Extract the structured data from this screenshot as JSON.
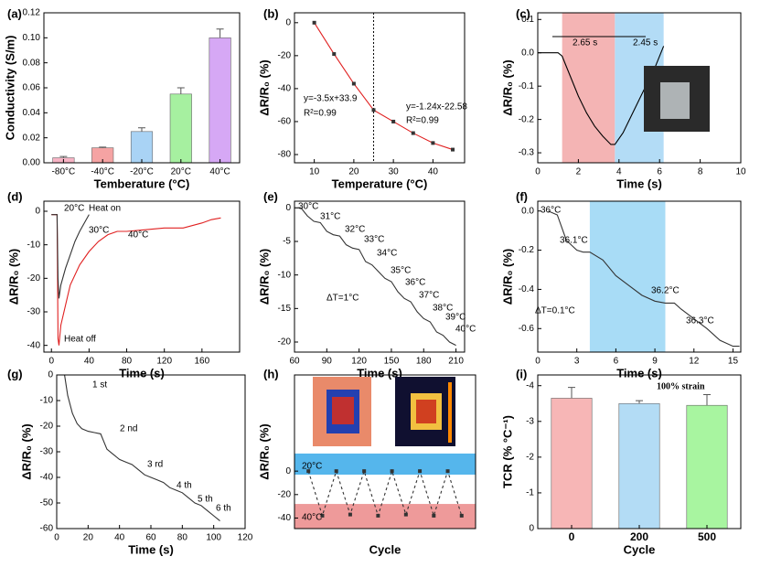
{
  "chart_data": [
    {
      "type": "bar",
      "panel_label": "(a)",
      "xlabel": "Temberature (°C)",
      "ylabel": "Conductivity (S/m)",
      "categories": [
        "-80°C",
        "-40°C",
        "-20°C",
        "20°C",
        "40°C"
      ],
      "values": [
        0.004,
        0.012,
        0.025,
        0.055,
        0.1
      ],
      "errors": [
        0.001,
        0.0005,
        0.003,
        0.005,
        0.007
      ],
      "colors": [
        "#f7b3c4",
        "#f5a3a3",
        "#a9d3f5",
        "#a6f0a0",
        "#d6a8f5"
      ],
      "ylim": [
        0,
        0.12
      ],
      "yticks": [
        {
          "value": 0,
          "label": "0.00"
        },
        {
          "value": 0.02,
          "label": "0.02"
        },
        {
          "value": 0.04,
          "label": "0.04"
        },
        {
          "value": 0.06,
          "label": "0.06"
        },
        {
          "value": 0.08,
          "label": "0.08"
        },
        {
          "value": 0.1,
          "label": "0.10"
        },
        {
          "value": 0.12,
          "label": "0.12"
        }
      ]
    },
    {
      "type": "scatter",
      "panel_label": "(b)",
      "xlabel": "Temperature (°C)",
      "ylabel": "ΔR/R₀ (%)",
      "x": [
        10,
        15,
        20,
        25,
        30,
        35,
        40,
        45
      ],
      "series": [
        {
          "color": "#e02020",
          "marker_color": "#333333",
          "marker": "square",
          "values": [
            0,
            -19,
            -37,
            -53,
            -60,
            -67,
            -73,
            -77
          ]
        }
      ],
      "vline": 25,
      "xlim": [
        5,
        48
      ],
      "xticks": [
        10,
        20,
        30,
        40
      ],
      "ylim": [
        -85,
        6
      ],
      "yticks": [
        0,
        -20,
        -40,
        -60,
        -80
      ],
      "annotations": [
        {
          "text": "y=-3.5x+33.9"
        },
        {
          "text": "R²=0.99"
        },
        {
          "text": "y=-1.24x-22.58"
        },
        {
          "text": "R²=0.99"
        }
      ]
    },
    {
      "type": "line",
      "panel_label": "(c)",
      "xlabel": "Time (s)",
      "ylabel": "ΔR/R₀ (%)",
      "x": [
        0,
        0.5,
        1.0,
        1.2,
        1.6,
        2.0,
        2.4,
        2.8,
        3.2,
        3.6,
        3.8,
        4.2,
        4.6,
        5.0,
        5.4,
        5.8,
        6.2
      ],
      "series": [
        {
          "color": "#000000",
          "values": [
            0,
            0,
            0,
            -0.01,
            -0.07,
            -0.13,
            -0.18,
            -0.22,
            -0.25,
            -0.275,
            -0.275,
            -0.24,
            -0.19,
            -0.14,
            -0.09,
            -0.04,
            0.02
          ]
        }
      ],
      "spans": [
        {
          "axis": "x",
          "from": 1.2,
          "to": 3.8,
          "color": "#f4b4b4"
        },
        {
          "axis": "x",
          "from": 3.8,
          "to": 6.2,
          "color": "#b3dcf6"
        }
      ],
      "xlim": [
        0,
        10
      ],
      "xticks": [
        0,
        2,
        4,
        6,
        8,
        10
      ],
      "ylim": [
        -0.33,
        0.12
      ],
      "yticks": [
        -0.3,
        -0.2,
        -0.1,
        {
          "value": 0,
          "label": "0.0"
        },
        0.1
      ],
      "annotations": [
        {
          "text": "2.65 s"
        },
        {
          "text": "2.45 s"
        }
      ]
    },
    {
      "type": "line",
      "panel_label": "(d)",
      "xlabel": "Time (s)",
      "ylabel": "ΔR/R₀ (%)",
      "series": [
        {
          "name": "40°C",
          "color": "#e02020",
          "x": [
            0,
            4,
            6,
            7,
            8,
            10,
            15,
            20,
            30,
            40,
            50,
            60,
            70,
            80,
            100,
            120,
            140,
            160,
            170,
            180
          ],
          "values": [
            -1,
            -1,
            -1,
            -38,
            -40,
            -34,
            -28,
            -22,
            -16,
            -12,
            -9,
            -7,
            -6,
            -6,
            -5.5,
            -5,
            -5,
            -3.5,
            -2.5,
            -2
          ]
        },
        {
          "name": "30°C",
          "color": "#333333",
          "x": [
            0,
            4,
            6,
            7,
            8,
            10,
            15,
            20,
            25,
            30,
            40
          ],
          "values": [
            -1,
            -1,
            -1,
            -20,
            -26,
            -22,
            -17,
            -13,
            -9,
            -6,
            -1
          ]
        }
      ],
      "xlim": [
        -8,
        200
      ],
      "xticks": [
        0,
        40,
        80,
        120,
        160
      ],
      "ylim": [
        -42,
        3
      ],
      "yticks": [
        0,
        -10,
        -20,
        -30,
        -40
      ],
      "annotations": [
        {
          "text": "20°C",
          "color": "#1a3fcf"
        },
        {
          "text": "Heat on",
          "color": "#1a3fcf"
        },
        {
          "text": "Heat off",
          "color": "#e02020"
        }
      ]
    },
    {
      "type": "line",
      "panel_label": "(e)",
      "xlabel": "Time (s)",
      "ylabel": "ΔR/R₀ (%)",
      "x": [
        60,
        66,
        72,
        78,
        84,
        90,
        96,
        102,
        108,
        114,
        120,
        126,
        132,
        138,
        144,
        150,
        156,
        162,
        168,
        174,
        180,
        186,
        192,
        198,
        204,
        210
      ],
      "series": [
        {
          "color": "#333333",
          "values": [
            0,
            0,
            -1.2,
            -2,
            -2.2,
            -3.5,
            -4,
            -4.2,
            -5.5,
            -6,
            -6.2,
            -8,
            -8.5,
            -9.5,
            -10.5,
            -11,
            -12.5,
            -13.5,
            -14,
            -15.5,
            -16.5,
            -17,
            -18.5,
            -19,
            -20,
            -20.5
          ]
        }
      ],
      "xlim": [
        60,
        218
      ],
      "xticks": [
        60,
        90,
        120,
        150,
        180,
        210
      ],
      "ylim": [
        -21.5,
        1
      ],
      "yticks": [
        0,
        -5,
        -10,
        -15,
        -20
      ],
      "annotations": [
        {
          "text": "30°C",
          "color": "#e02020"
        },
        {
          "text": "31°C",
          "color": "#e02020"
        },
        {
          "text": "32°C",
          "color": "#e02020"
        },
        {
          "text": "33°C",
          "color": "#e02020"
        },
        {
          "text": "34°C",
          "color": "#e02020"
        },
        {
          "text": "35°C",
          "color": "#e02020"
        },
        {
          "text": "36°C",
          "color": "#e02020"
        },
        {
          "text": "37°C",
          "color": "#e02020"
        },
        {
          "text": "38°C",
          "color": "#e02020"
        },
        {
          "text": "39°C",
          "color": "#e02020"
        },
        {
          "text": "40°C",
          "color": "#e02020"
        },
        {
          "text": "ΔT=1°C"
        }
      ]
    },
    {
      "type": "line",
      "panel_label": "(f)",
      "xlabel": "Time (s)",
      "ylabel": "ΔR/R₀ (%)",
      "x": [
        0.8,
        1.5,
        2.2,
        3,
        3.5,
        4,
        5,
        6,
        7,
        8,
        9,
        9.8,
        10.5,
        11,
        12,
        13,
        14,
        15,
        15.5
      ],
      "series": [
        {
          "color": "#333333",
          "values": [
            0,
            -0.02,
            -0.15,
            -0.2,
            -0.21,
            -0.21,
            -0.25,
            -0.33,
            -0.38,
            -0.43,
            -0.46,
            -0.47,
            -0.47,
            -0.5,
            -0.55,
            -0.6,
            -0.66,
            -0.69,
            -0.69
          ]
        }
      ],
      "spans": [
        {
          "axis": "x",
          "from": 4,
          "to": 9.8,
          "color": "#a8dcf6"
        }
      ],
      "xlim": [
        0,
        15.6
      ],
      "xticks": [
        0,
        3,
        6,
        9,
        12,
        15
      ],
      "ylim": [
        -0.72,
        0.05
      ],
      "yticks": [
        {
          "value": 0,
          "label": "0.0"
        },
        -0.2,
        -0.4,
        -0.6
      ],
      "annotations": [
        {
          "text": "36°C"
        },
        {
          "text": "36.1°C"
        },
        {
          "text": "36.2°C"
        },
        {
          "text": "36.3°C"
        },
        {
          "text": "ΔT=0.1°C",
          "color": "#e02020"
        }
      ]
    },
    {
      "type": "line",
      "panel_label": "(g)",
      "xlabel": "Time (s)",
      "ylabel": "ΔR/R₀ (%)",
      "x": [
        5,
        7,
        10,
        13,
        16,
        20,
        24,
        28,
        30,
        32,
        36,
        40,
        44,
        48,
        52,
        56,
        60,
        64,
        68,
        72,
        76,
        80,
        84,
        88,
        92,
        96,
        100,
        104
      ],
      "series": [
        {
          "color": "#333333",
          "values": [
            0,
            -8,
            -15,
            -19,
            -21,
            -22,
            -22.5,
            -23,
            -26,
            -29,
            -31,
            -33,
            -34,
            -35,
            -37,
            -39,
            -40,
            -41,
            -42,
            -44,
            -45,
            -46,
            -48,
            -50,
            -51,
            -53,
            -55,
            -57
          ]
        }
      ],
      "xlim": [
        0,
        120
      ],
      "xticks": [
        0,
        20,
        40,
        60,
        80,
        100,
        120
      ],
      "ylim": [
        -60,
        0
      ],
      "yticks": [
        0,
        -10,
        -20,
        -30,
        -40,
        -50,
        -60
      ],
      "annotations": [
        {
          "text": "1 st"
        },
        {
          "text": "2 nd"
        },
        {
          "text": "3 rd"
        },
        {
          "text": "4 th"
        },
        {
          "text": "5 th"
        },
        {
          "text": "6 th"
        }
      ]
    },
    {
      "type": "line",
      "panel_label": "(h)",
      "xlabel": "Cycle",
      "ylabel": "ΔR/R₀ (%)",
      "x": [
        1,
        2,
        3,
        4,
        5,
        6,
        7,
        8,
        9,
        10,
        11,
        12
      ],
      "series": [
        {
          "color": "#333333",
          "dash": true,
          "marker": "square",
          "marker_color": "#333333",
          "values": [
            0,
            -38,
            0,
            -37,
            0,
            -38,
            0,
            -37,
            0,
            -38,
            0,
            -38
          ]
        }
      ],
      "spans": [
        {
          "axis": "y",
          "from": 15,
          "to": -3,
          "color": "#55b6ec"
        },
        {
          "axis": "y",
          "from": -28,
          "to": -49,
          "color": "#ee9a9a"
        }
      ],
      "xlim": [
        0,
        13
      ],
      "ylim": [
        -49,
        82
      ],
      "yticks": [
        0,
        -20,
        -40
      ],
      "annotations": [
        {
          "text": "20°C"
        },
        {
          "text": "40°C"
        }
      ]
    },
    {
      "type": "bar",
      "panel_label": "(i)",
      "xlabel": "Cycle",
      "ylabel": "TCR (% °C⁻¹)",
      "categories": [
        "0",
        "200",
        "500"
      ],
      "values": [
        -3.65,
        -3.5,
        -3.45
      ],
      "errors": [
        0.3,
        0.08,
        0.3
      ],
      "colors": [
        "#f7b6b6",
        "#b3dcf5",
        "#a8f5a0"
      ],
      "ylim": [
        0,
        -4.3
      ],
      "yticks": [
        -4,
        -3,
        -2,
        -1,
        0
      ],
      "annotations": [
        {
          "text": "100% strain"
        }
      ]
    }
  ]
}
